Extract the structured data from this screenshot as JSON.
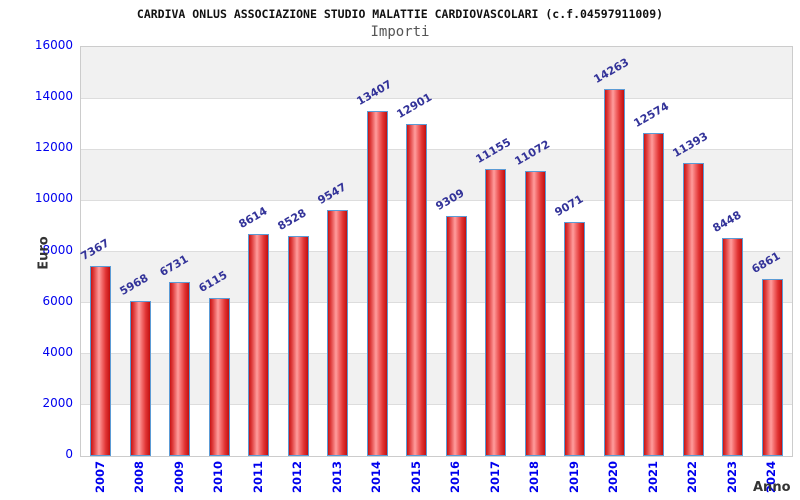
{
  "header": {
    "title": "CARDIVA ONLUS ASSOCIAZIONE STUDIO MALATTIE CARDIOVASCOLARI (c.f.04597911009)",
    "subtitle": "Importi"
  },
  "chart_data": {
    "type": "bar",
    "title": "CARDIVA ONLUS ASSOCIAZIONE STUDIO MALATTIE CARDIOVASCOLARI (c.f.04597911009)",
    "subtitle": "Importi",
    "xlabel": "Anno",
    "ylabel": "Euro",
    "categories": [
      "2007",
      "2008",
      "2009",
      "2010",
      "2011",
      "2012",
      "2013",
      "2014",
      "2015",
      "2016",
      "2017",
      "2018",
      "2019",
      "2020",
      "2021",
      "2022",
      "2023",
      "2024"
    ],
    "values": [
      7367,
      5968,
      6731,
      6115,
      8614,
      8528,
      9547,
      13407,
      12901,
      9309,
      11155,
      11072,
      9071,
      14263,
      12574,
      11393,
      8448,
      6861
    ],
    "ylim": [
      0,
      16000
    ],
    "yticks": [
      0,
      2000,
      4000,
      6000,
      8000,
      10000,
      12000,
      14000,
      16000
    ],
    "grid": "horizontal-bands",
    "legend": "none",
    "bar_labels_rotation_deg": -30,
    "xtick_rotation_deg": -90
  },
  "colors": {
    "bar_fill_edge": "#c81414",
    "bar_fill_highlight": "#ff9d9d",
    "bar_border": "#5b9bd5",
    "axis_tick_text": "#0000ee",
    "bar_value_text": "#333399",
    "band_gray": "#f1f1f1",
    "plot_border": "#cccccc",
    "title_text": "#111111",
    "subtitle_text": "#555555",
    "axis_title_text": "#333333"
  }
}
